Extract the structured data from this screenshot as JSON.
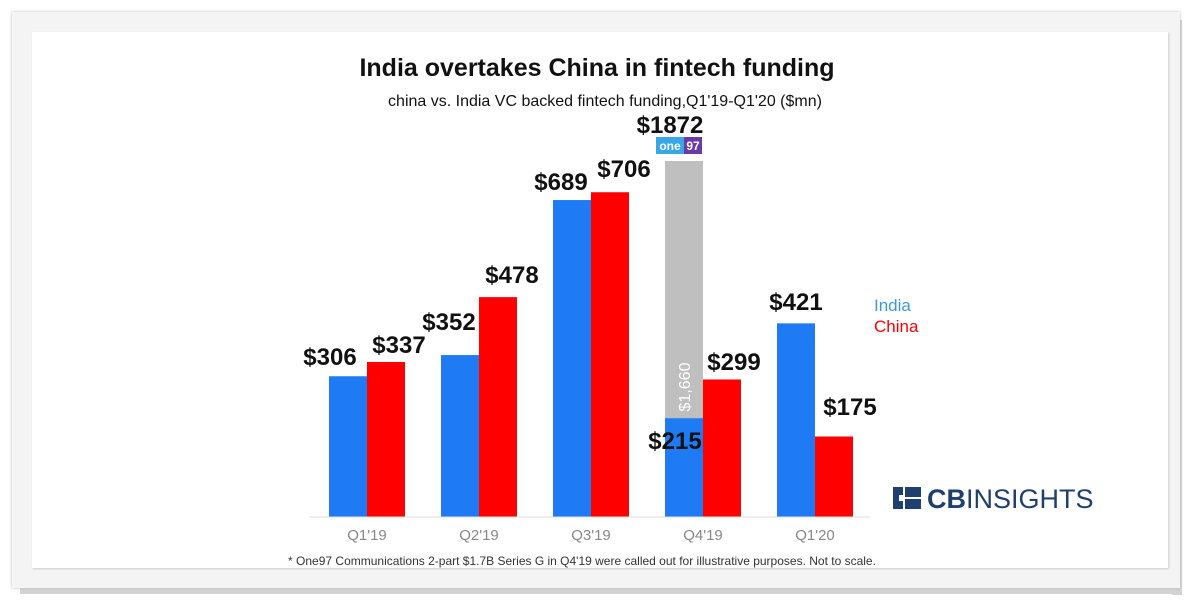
{
  "colors": {
    "india": "#1f7bf4",
    "china": "#ff0000",
    "callout": "#c0bfbf",
    "logo": "#1f3f6e",
    "badge_blue": "#39a6e6",
    "badge_purple": "#6a3aa8"
  },
  "footnote": "* One97 Communications 2-part $1.7B Series G in Q4'19 were called out for illustrative purposes. Not to scale.",
  "logo": {
    "icon": "cbinsights-logo-icon",
    "cb": "CB",
    "insights": "INSIGHTS"
  },
  "callout": {
    "company_badge_left": "one",
    "company_badge_right": "97",
    "inner_label": "$1,660",
    "total_label": "$1872",
    "quarter": "Q4'19",
    "value": 1660,
    "total": 1872
  },
  "chart_data": {
    "type": "bar",
    "title": "India overtakes China in fintech funding",
    "subtitle": "china vs. India VC backed fintech funding,Q1'19-Q1'20 ($mn)",
    "xlabel": "",
    "ylabel": "",
    "categories": [
      "Q1'19",
      "Q2'19",
      "Q3'19",
      "Q4'19",
      "Q1'20"
    ],
    "series": [
      {
        "name": "India",
        "values": [
          306,
          352,
          689,
          215,
          421
        ],
        "labels": [
          "$306",
          "$352",
          "$689",
          "$215",
          "$421"
        ]
      },
      {
        "name": "China",
        "values": [
          337,
          478,
          706,
          299,
          175
        ],
        "labels": [
          "$337",
          "$478",
          "$706",
          "$299",
          "$175"
        ]
      }
    ],
    "ylim": [
      0,
      706
    ],
    "grid": false,
    "legend_position": "right"
  }
}
